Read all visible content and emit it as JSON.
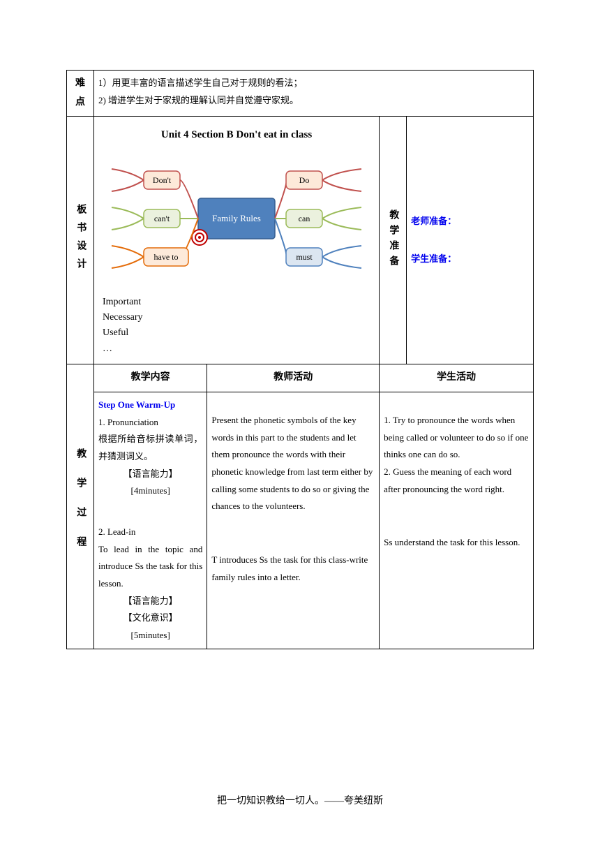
{
  "row_difficulty": {
    "label": "难点",
    "line1": "1）用更丰富的语言描述学生自己对于规则的看法；",
    "line2": "2) 增进学生对于家规的理解认同并自觉遵守家规。"
  },
  "row_board": {
    "label": "板书设计",
    "title": "Unit 4 Section B Don't eat in class",
    "diagram": {
      "center": "Family Rules",
      "center_bg": "#4f81bd",
      "center_text_color": "#ffffff",
      "left_nodes": [
        {
          "text": "Don't",
          "bg": "#fde9d9",
          "border": "#c0504d"
        },
        {
          "text": "can't",
          "bg": "#ebf1de",
          "border": "#9bbb59"
        },
        {
          "text": "have to",
          "bg": "#fdeada",
          "border": "#e46c0a"
        }
      ],
      "right_nodes": [
        {
          "text": "Do",
          "bg": "#fde9d9",
          "border": "#c0504d"
        },
        {
          "text": "can",
          "bg": "#ebf1de",
          "border": "#9bbb59"
        },
        {
          "text": "must",
          "bg": "#dce6f1",
          "border": "#4f81bd"
        }
      ],
      "branch_colors_left": [
        "#c0504d",
        "#9bbb59",
        "#e46c0a"
      ],
      "branch_colors_right": [
        "#c0504d",
        "#9bbb59",
        "#4f81bd"
      ],
      "node_border_radius": 6,
      "node_fontsize": 12,
      "center_width": 110,
      "center_height": 58,
      "line_width": 2,
      "target_color": "#c00000"
    },
    "wordlist": [
      "Important",
      "Necessary",
      "Useful",
      "…"
    ],
    "prep_label": "教学准备",
    "teacher_prep": "老师准备：",
    "student_prep": "学生准备："
  },
  "row_process": {
    "label": "教学过程",
    "headers": {
      "c1": "教学内容",
      "c2": "教师活动",
      "c3": "学生活动"
    },
    "c1": {
      "step": "Step One    Warm-Up",
      "p1_1": "1.  Pronunciation",
      "p1_2": "根据所给音标拼读单词，并猜测词义。",
      "p1_3": "【语言能力】",
      "p1_4": "[4minutes]",
      "p2_1": "2.  Lead-in",
      "p2_2": "To lead in the topic and introduce Ss the task for this lesson.",
      "p2_3": "【语言能力】",
      "p2_4": "【文化意识】",
      "p2_5": "[5minutes]"
    },
    "c2": {
      "p1": "Present the phonetic symbols of the key words in this part to the students and let them pronounce the words with their phonetic knowledge from last term either by calling some students to do so or giving the chances to the volunteers.",
      "p2": "T introduces Ss the task for this class-write family rules into a letter."
    },
    "c3": {
      "p1": "1.  Try to pronounce the words when being called or volunteer to do so if one thinks one can do so.",
      "p2": "2.  Guess the meaning of each word after pronouncing the word right.",
      "p3": "Ss understand the task for this lesson."
    }
  },
  "footer": "把一切知识教给一切人。——夸美纽斯",
  "colors": {
    "blue": "#0000ee",
    "black": "#000000"
  },
  "col_widths": {
    "label": 34,
    "content1": 148,
    "content2": 220,
    "prep_label": 34,
    "content3": 180
  }
}
